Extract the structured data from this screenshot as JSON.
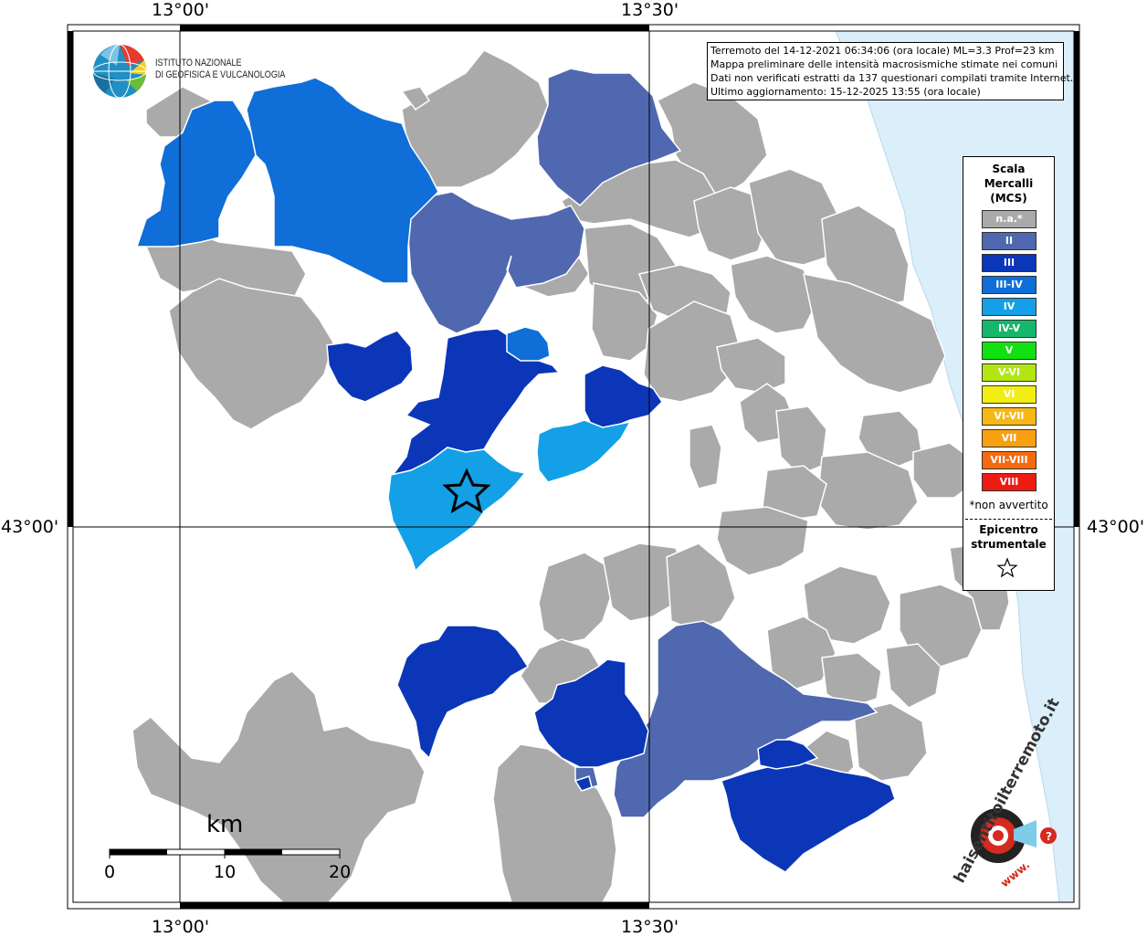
{
  "coords": {
    "top": [
      "13°00'",
      "13°30'"
    ],
    "bottom": [
      "13°00'",
      "13°30'"
    ],
    "left": "43°00'",
    "right": "43°00'"
  },
  "info": {
    "line1": "Terremoto del 14-12-2021 06:34:06 (ora locale) ML=3.3 Prof=23 km",
    "line2": "Mappa preliminare delle intensità macrosismiche stimate nei comuni",
    "line3": "Dati non verificati estratti da 137 questionari compilati tramite Internet.",
    "line4": "Ultimo aggiornamento: 15-12-2025 13:55 (ora locale)"
  },
  "ingv": {
    "line1": "ISTITUTO NAZIONALE",
    "line2": "DI GEOFISICA E VULCANOLOGIA"
  },
  "legend": {
    "title1": "Scala",
    "title2": "Mercalli",
    "title3": "(MCS)",
    "items": [
      {
        "label": "n.a.*",
        "color": "#aaaaaa"
      },
      {
        "label": "II",
        "color": "#4f68af"
      },
      {
        "label": "III",
        "color": "#0b36b8"
      },
      {
        "label": "III-IV",
        "color": "#0f6ed8"
      },
      {
        "label": "IV",
        "color": "#13a0e6"
      },
      {
        "label": "IV-V",
        "color": "#15b86a"
      },
      {
        "label": "V",
        "color": "#11e011"
      },
      {
        "label": "V-VI",
        "color": "#b2e612"
      },
      {
        "label": "VI",
        "color": "#f2ee11"
      },
      {
        "label": "VI-VII",
        "color": "#f6b815"
      },
      {
        "label": "VII",
        "color": "#f8a010"
      },
      {
        "label": "VII-VIII",
        "color": "#f66a0f"
      },
      {
        "label": "VIII",
        "color": "#ee1b12"
      }
    ],
    "note": "*non avvertito",
    "epicenter1": "Epicentro",
    "epicenter2": "strumentale"
  },
  "scale_bar": {
    "unit": "km",
    "labels": [
      "0",
      "10",
      "20"
    ]
  },
  "logo": {
    "hst": "haisentitoilterremoto.it",
    "www": "www.",
    "q": "?"
  },
  "colors": {
    "na": "#aaaaaa",
    "ii": "#4f68af",
    "iii": "#0b36b8",
    "iii_iv": "#0f6ed8",
    "iv": "#13a0e6",
    "sea": "#dbeffa"
  }
}
